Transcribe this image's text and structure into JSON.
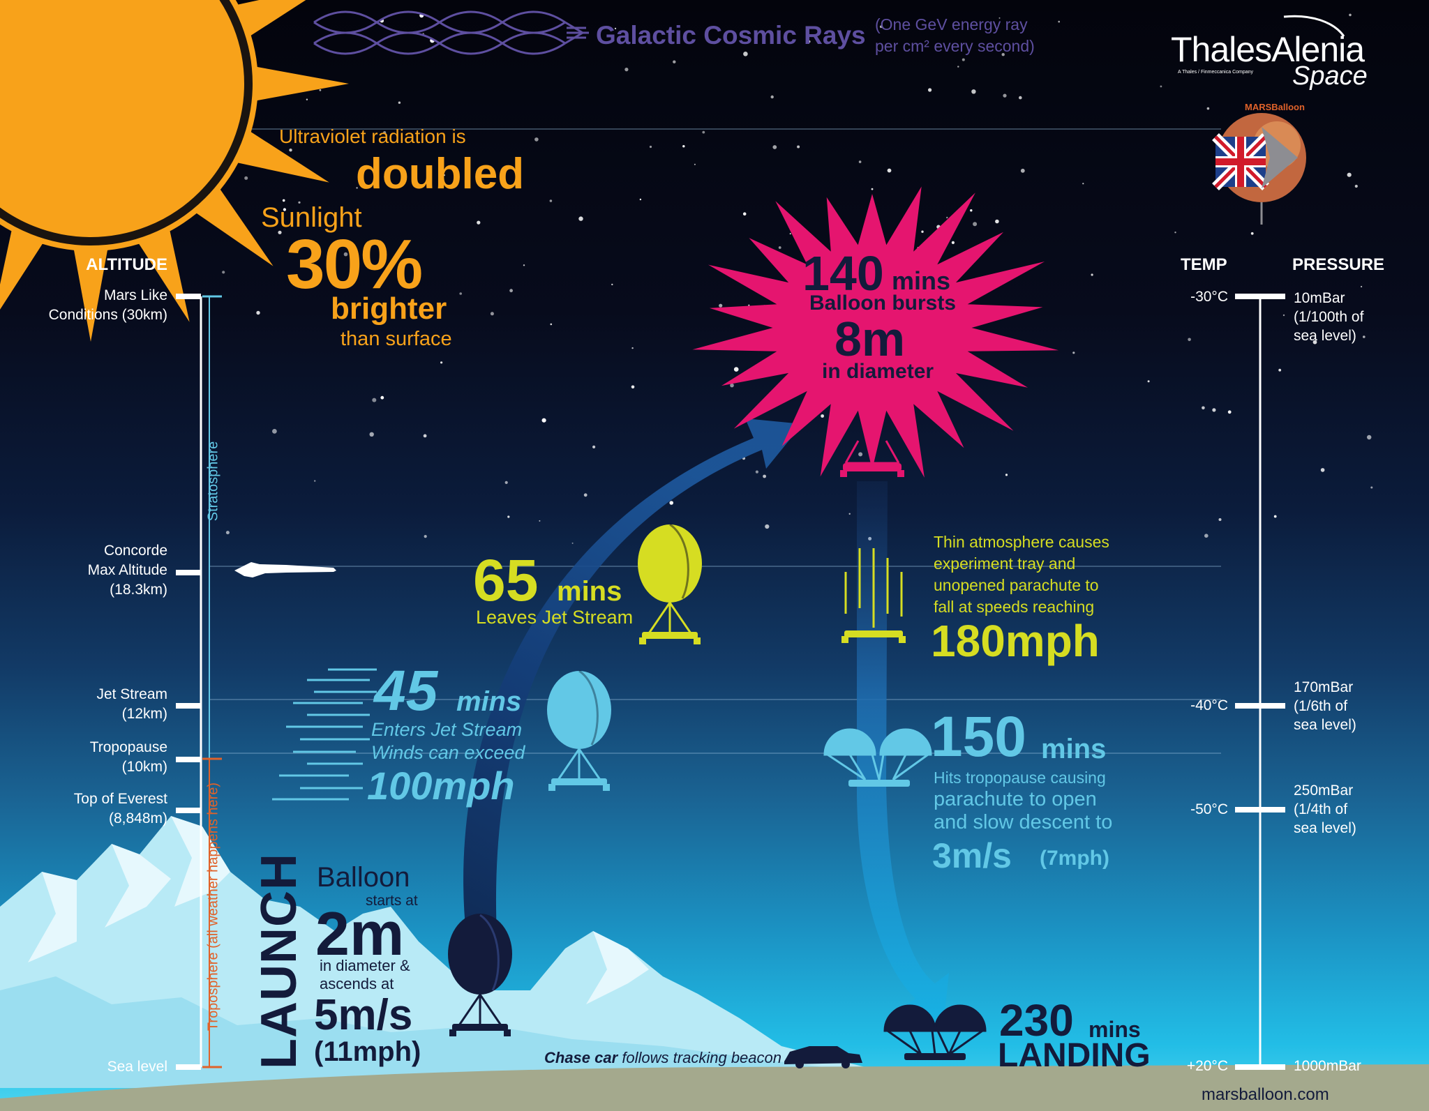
{
  "header": {
    "cosmic_title": "Galactic Cosmic Rays",
    "cosmic_note_line1": "(One GeV energy ray",
    "cosmic_note_line2": "per cm² every second)",
    "brand_name": "ThalesAlenia",
    "brand_tagline": "A Thales / Finmeccanica Company",
    "brand_space": "Space",
    "badge_text": "MARSBalloon"
  },
  "sun_facts": {
    "uv_line": "Ultraviolet radiation is",
    "uv_highlight": "doubled",
    "sunlight_label": "Sunlight",
    "sunlight_value": "30%",
    "sunlight_brighter": "brighter",
    "sunlight_suffix": "than surface"
  },
  "altitude_scale": {
    "heading": "ALTITUDE",
    "markers": [
      {
        "line1": "Mars Like",
        "line2": "Conditions (30km)",
        "line3": ""
      },
      {
        "line1": "Concorde",
        "line2": "Max Altitude",
        "line3": "(18.3km)"
      },
      {
        "line1": "Jet Stream",
        "line2": "(12km)",
        "line3": ""
      },
      {
        "line1": "Tropopause",
        "line2": "(10km)",
        "line3": ""
      },
      {
        "line1": "Top of Everest",
        "line2": "(8,848m)",
        "line3": ""
      },
      {
        "line1": "Sea level",
        "line2": "",
        "line3": ""
      }
    ],
    "stratosphere_label": "Stratosphere",
    "troposphere_label": "Troposphere (all weather happens here)"
  },
  "right_scale": {
    "temp_heading": "TEMP",
    "pressure_heading": "PRESSURE",
    "markers": [
      {
        "temp": "-30°C",
        "pressure_line1": "10mBar",
        "pressure_line2": "(1/100th of",
        "pressure_line3": "sea level)"
      },
      {
        "temp": "-40°C",
        "pressure_line1": "170mBar",
        "pressure_line2": "(1/6th of",
        "pressure_line3": "sea level)"
      },
      {
        "temp": "-50°C",
        "pressure_line1": "250mBar",
        "pressure_line2": "(1/4th of",
        "pressure_line3": "sea level)"
      },
      {
        "temp": "+20°C",
        "pressure_line1": "1000mBar",
        "pressure_line2": "",
        "pressure_line3": ""
      }
    ]
  },
  "stages": {
    "launch": {
      "vertical_label": "LAUNCH",
      "balloon": "Balloon",
      "starts_at": "starts at",
      "size": "2m",
      "in_diameter": "in diameter &",
      "ascends_at": "ascends at",
      "speed": "5m/s",
      "speed_mph": "(11mph)"
    },
    "jet_stream_enter": {
      "time": "45",
      "unit": "mins",
      "line1": "Enters Jet Stream",
      "line2": "Winds can exceed",
      "speed": "100mph"
    },
    "jet_stream_leave": {
      "time": "65",
      "unit": "mins",
      "line1": "Leaves Jet Stream"
    },
    "burst": {
      "time": "140",
      "unit": "mins",
      "line1": "Balloon bursts",
      "size": "8m",
      "line2": "in diameter"
    },
    "freefall": {
      "line1": "Thin atmosphere causes",
      "line2": "experiment tray and",
      "line3": "unopened parachute to",
      "line4": "fall at speeds reaching",
      "speed": "180mph"
    },
    "parachute": {
      "time": "150",
      "unit": "mins",
      "line1": "Hits tropopause causing",
      "line2": "parachute to open",
      "line3": "and slow descent to",
      "speed": "3m/s",
      "speed_mph": "(7mph)"
    },
    "landing": {
      "time": "230",
      "unit": "mins",
      "label": "LANDING"
    }
  },
  "chase_car": {
    "bold": "Chase car",
    "rest": "follows tracking beacon"
  },
  "footer": {
    "website": "marsballoon.com"
  },
  "colors": {
    "sun": "#f8a21a",
    "burst_pink": "#e5156f",
    "stage_yellow": "#d6dd22",
    "stage_lightblue": "#62c8e6",
    "launch_navy": "#131b3b",
    "cosmic_purple": "#5e4fa0"
  }
}
